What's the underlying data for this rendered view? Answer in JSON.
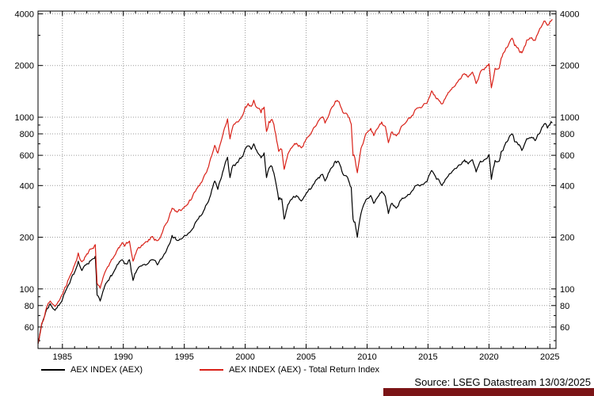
{
  "chart": {
    "source_text": "Source: LSEG Datastream 13/03/2025",
    "brand_color": "#7b1416",
    "legend": [
      {
        "label": "AEX INDEX (AEX)",
        "color": "#000000"
      },
      {
        "label": "AEX INDEX (AEX) - Total Return Index",
        "color": "#d92118"
      }
    ]
  },
  "chart_data": {
    "type": "line",
    "title": "",
    "xlabel": "",
    "ylabel": "",
    "y_scale": "log",
    "grid": "dotted",
    "legend_position": "bottom-left",
    "xlim": [
      1983,
      2025.5
    ],
    "ylim": [
      45,
      4150
    ],
    "y_ticks": [
      60,
      80,
      100,
      200,
      400,
      600,
      800,
      1000,
      2000,
      4000
    ],
    "x_ticks": [
      1985,
      1990,
      1995,
      2000,
      2005,
      2010,
      2015,
      2020,
      2025
    ],
    "series": [
      {
        "name": "AEX INDEX (AEX)",
        "color": "#000000",
        "points": [
          [
            1983.0,
            48
          ],
          [
            1983.3,
            62
          ],
          [
            1983.7,
            76
          ],
          [
            1984.0,
            82
          ],
          [
            1984.4,
            75
          ],
          [
            1984.8,
            82
          ],
          [
            1985.2,
            95
          ],
          [
            1985.6,
            108
          ],
          [
            1986.0,
            125
          ],
          [
            1986.3,
            145
          ],
          [
            1986.6,
            128
          ],
          [
            1987.0,
            140
          ],
          [
            1987.4,
            148
          ],
          [
            1987.7,
            155
          ],
          [
            1987.85,
            92
          ],
          [
            1988.1,
            85
          ],
          [
            1988.4,
            100
          ],
          [
            1988.8,
            112
          ],
          [
            1989.2,
            125
          ],
          [
            1989.6,
            140
          ],
          [
            1989.9,
            148
          ],
          [
            1990.1,
            140
          ],
          [
            1990.5,
            148
          ],
          [
            1990.8,
            112
          ],
          [
            1991.1,
            128
          ],
          [
            1991.5,
            136
          ],
          [
            1992.0,
            140
          ],
          [
            1992.4,
            148
          ],
          [
            1992.8,
            138
          ],
          [
            1993.2,
            152
          ],
          [
            1993.6,
            172
          ],
          [
            1994.0,
            205
          ],
          [
            1994.4,
            192
          ],
          [
            1994.8,
            196
          ],
          [
            1995.2,
            205
          ],
          [
            1995.6,
            220
          ],
          [
            1996.0,
            248
          ],
          [
            1996.5,
            275
          ],
          [
            1997.0,
            325
          ],
          [
            1997.5,
            425
          ],
          [
            1997.75,
            380
          ],
          [
            1998.0,
            435
          ],
          [
            1998.3,
            520
          ],
          [
            1998.55,
            585
          ],
          [
            1998.75,
            445
          ],
          [
            1999.0,
            525
          ],
          [
            1999.4,
            545
          ],
          [
            1999.8,
            590
          ],
          [
            2000.0,
            655
          ],
          [
            2000.25,
            680
          ],
          [
            2000.5,
            650
          ],
          [
            2000.7,
            700
          ],
          [
            2001.0,
            625
          ],
          [
            2001.3,
            580
          ],
          [
            2001.55,
            620
          ],
          [
            2001.75,
            445
          ],
          [
            2001.95,
            505
          ],
          [
            2002.2,
            515
          ],
          [
            2002.5,
            420
          ],
          [
            2002.75,
            330
          ],
          [
            2003.0,
            335
          ],
          [
            2003.2,
            255
          ],
          [
            2003.5,
            310
          ],
          [
            2003.9,
            340
          ],
          [
            2004.2,
            350
          ],
          [
            2004.6,
            325
          ],
          [
            2005.0,
            360
          ],
          [
            2005.5,
            395
          ],
          [
            2006.0,
            445
          ],
          [
            2006.35,
            465
          ],
          [
            2006.55,
            425
          ],
          [
            2007.0,
            500
          ],
          [
            2007.4,
            555
          ],
          [
            2007.7,
            545
          ],
          [
            2008.0,
            470
          ],
          [
            2008.4,
            445
          ],
          [
            2008.7,
            390
          ],
          [
            2008.85,
            255
          ],
          [
            2009.0,
            245
          ],
          [
            2009.2,
            200
          ],
          [
            2009.5,
            275
          ],
          [
            2009.9,
            330
          ],
          [
            2010.3,
            350
          ],
          [
            2010.55,
            315
          ],
          [
            2010.9,
            345
          ],
          [
            2011.2,
            370
          ],
          [
            2011.5,
            345
          ],
          [
            2011.75,
            275
          ],
          [
            2012.0,
            315
          ],
          [
            2012.4,
            295
          ],
          [
            2012.8,
            330
          ],
          [
            2013.2,
            345
          ],
          [
            2013.6,
            365
          ],
          [
            2014.0,
            400
          ],
          [
            2014.5,
            405
          ],
          [
            2014.9,
            420
          ],
          [
            2015.3,
            490
          ],
          [
            2015.7,
            435
          ],
          [
            2016.0,
            415
          ],
          [
            2016.15,
            400
          ],
          [
            2016.5,
            440
          ],
          [
            2017.0,
            485
          ],
          [
            2017.5,
            525
          ],
          [
            2018.0,
            565
          ],
          [
            2018.3,
            535
          ],
          [
            2018.65,
            565
          ],
          [
            2018.95,
            480
          ],
          [
            2019.3,
            555
          ],
          [
            2019.6,
            565
          ],
          [
            2020.0,
            605
          ],
          [
            2020.2,
            435
          ],
          [
            2020.5,
            560
          ],
          [
            2020.85,
            555
          ],
          [
            2021.0,
            630
          ],
          [
            2021.4,
            715
          ],
          [
            2021.8,
            790
          ],
          [
            2021.9,
            800
          ],
          [
            2022.1,
            720
          ],
          [
            2022.4,
            690
          ],
          [
            2022.7,
            640
          ],
          [
            2022.9,
            690
          ],
          [
            2023.1,
            750
          ],
          [
            2023.5,
            765
          ],
          [
            2023.8,
            730
          ],
          [
            2024.0,
            790
          ],
          [
            2024.35,
            875
          ],
          [
            2024.6,
            920
          ],
          [
            2024.8,
            865
          ],
          [
            2025.0,
            905
          ],
          [
            2025.2,
            925
          ]
        ]
      },
      {
        "name": "AEX INDEX (AEX) - Total Return Index",
        "color": "#d92118",
        "points": [
          [
            1983.0,
            48
          ],
          [
            1983.3,
            63
          ],
          [
            1983.7,
            78
          ],
          [
            1984.0,
            85
          ],
          [
            1984.4,
            79
          ],
          [
            1984.8,
            87
          ],
          [
            1985.2,
            102
          ],
          [
            1985.6,
            118
          ],
          [
            1986.0,
            138
          ],
          [
            1986.3,
            162
          ],
          [
            1986.6,
            144
          ],
          [
            1987.0,
            160
          ],
          [
            1987.4,
            171
          ],
          [
            1987.7,
            181
          ],
          [
            1987.85,
            108
          ],
          [
            1988.1,
            101
          ],
          [
            1988.4,
            120
          ],
          [
            1988.8,
            136
          ],
          [
            1989.2,
            153
          ],
          [
            1989.6,
            174
          ],
          [
            1989.9,
            186
          ],
          [
            1990.1,
            177
          ],
          [
            1990.5,
            190
          ],
          [
            1990.8,
            145
          ],
          [
            1991.1,
            167
          ],
          [
            1991.5,
            180
          ],
          [
            1992.0,
            188
          ],
          [
            1992.4,
            202
          ],
          [
            1992.8,
            191
          ],
          [
            1993.2,
            213
          ],
          [
            1993.6,
            244
          ],
          [
            1994.0,
            295
          ],
          [
            1994.4,
            280
          ],
          [
            1994.8,
            289
          ],
          [
            1995.2,
            307
          ],
          [
            1995.6,
            334
          ],
          [
            1996.0,
            381
          ],
          [
            1996.5,
            429
          ],
          [
            1997.0,
            516
          ],
          [
            1997.5,
            686
          ],
          [
            1997.75,
            618
          ],
          [
            1998.0,
            714
          ],
          [
            1998.3,
            862
          ],
          [
            1998.55,
            978
          ],
          [
            1998.75,
            748
          ],
          [
            1999.0,
            890
          ],
          [
            1999.4,
            937
          ],
          [
            1999.8,
            1027
          ],
          [
            2000.0,
            1148
          ],
          [
            2000.25,
            1202
          ],
          [
            2000.5,
            1158
          ],
          [
            2000.7,
            1256
          ],
          [
            2001.0,
            1133
          ],
          [
            2001.3,
            1061
          ],
          [
            2001.55,
            1144
          ],
          [
            2001.75,
            826
          ],
          [
            2001.95,
            944
          ],
          [
            2002.2,
            971
          ],
          [
            2002.5,
            800
          ],
          [
            2002.75,
            633
          ],
          [
            2003.0,
            648
          ],
          [
            2003.2,
            497
          ],
          [
            2003.5,
            610
          ],
          [
            2003.9,
            678
          ],
          [
            2004.2,
            705
          ],
          [
            2004.6,
            663
          ],
          [
            2005.0,
            744
          ],
          [
            2005.5,
            830
          ],
          [
            2006.0,
            951
          ],
          [
            2006.35,
            1005
          ],
          [
            2006.55,
            924
          ],
          [
            2007.0,
            1104
          ],
          [
            2007.4,
            1242
          ],
          [
            2007.7,
            1231
          ],
          [
            2008.0,
            1072
          ],
          [
            2008.4,
            1029
          ],
          [
            2008.7,
            911
          ],
          [
            2008.85,
            598
          ],
          [
            2009.0,
            578
          ],
          [
            2009.2,
            475
          ],
          [
            2009.5,
            659
          ],
          [
            2009.9,
            802
          ],
          [
            2010.3,
            861
          ],
          [
            2010.55,
            782
          ],
          [
            2010.9,
            866
          ],
          [
            2011.2,
            938
          ],
          [
            2011.5,
            883
          ],
          [
            2011.75,
            710
          ],
          [
            2012.0,
            820
          ],
          [
            2012.4,
            778
          ],
          [
            2012.8,
            882
          ],
          [
            2013.2,
            934
          ],
          [
            2013.6,
            1002
          ],
          [
            2014.0,
            1112
          ],
          [
            2014.5,
            1145
          ],
          [
            2014.9,
            1203
          ],
          [
            2015.3,
            1422
          ],
          [
            2015.7,
            1279
          ],
          [
            2016.0,
            1232
          ],
          [
            2016.15,
            1194
          ],
          [
            2016.5,
            1328
          ],
          [
            2017.0,
            1488
          ],
          [
            2017.5,
            1637
          ],
          [
            2018.0,
            1792
          ],
          [
            2018.3,
            1713
          ],
          [
            2018.65,
            1831
          ],
          [
            2018.95,
            1571
          ],
          [
            2019.3,
            1837
          ],
          [
            2019.6,
            1889
          ],
          [
            2020.0,
            2049
          ],
          [
            2020.2,
            1483
          ],
          [
            2020.5,
            1928
          ],
          [
            2020.85,
            1933
          ],
          [
            2021.0,
            2205
          ],
          [
            2021.4,
            2536
          ],
          [
            2021.8,
            2839
          ],
          [
            2021.9,
            2885
          ],
          [
            2022.1,
            2613
          ],
          [
            2022.4,
            2529
          ],
          [
            2022.7,
            2369
          ],
          [
            2022.9,
            2571
          ],
          [
            2023.1,
            2813
          ],
          [
            2023.5,
            2907
          ],
          [
            2023.8,
            2802
          ],
          [
            2024.0,
            3052
          ],
          [
            2024.35,
            3420
          ],
          [
            2024.6,
            3625
          ],
          [
            2024.8,
            3431
          ],
          [
            2025.0,
            3593
          ],
          [
            2025.2,
            3718
          ]
        ]
      }
    ]
  }
}
